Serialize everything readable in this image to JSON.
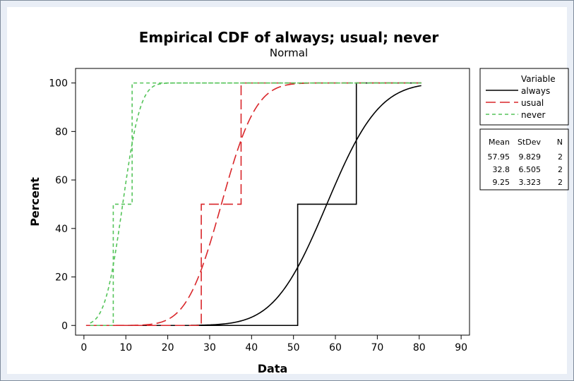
{
  "chart_data": {
    "type": "line",
    "title": "Empirical CDF of always; usual; never",
    "subtitle": "Normal",
    "xlabel": "Data",
    "ylabel": "Percent",
    "xlim": [
      -2,
      92
    ],
    "ylim": [
      -4,
      106
    ],
    "xticks": [
      0,
      10,
      20,
      30,
      40,
      50,
      60,
      70,
      80,
      90
    ],
    "yticks": [
      0,
      20,
      40,
      60,
      80,
      100
    ],
    "grid": false,
    "legend": {
      "title": "Variable",
      "placement": "right",
      "entries": [
        {
          "name": "always",
          "color": "#000000",
          "dash": "solid"
        },
        {
          "name": "usual",
          "color": "#d9262a",
          "dash": "long-dash"
        },
        {
          "name": "never",
          "color": "#55c45a",
          "dash": "short-dash"
        }
      ]
    },
    "series": [
      {
        "name": "always",
        "color": "#000000",
        "empirical_points": [
          51,
          65
        ],
        "mean": 57.95,
        "stdev": 9.829,
        "n": 2,
        "fit": "normal",
        "fit_range": [
          25.5,
          80.5
        ]
      },
      {
        "name": "usual",
        "color": "#d9262a",
        "empirical_points": [
          28,
          37.5
        ],
        "mean": 32.8,
        "stdev": 6.505,
        "n": 2,
        "fit": "normal",
        "fit_range": [
          0.5,
          80.5
        ]
      },
      {
        "name": "never",
        "color": "#55c45a",
        "empirical_points": [
          7,
          11.5
        ],
        "mean": 9.25,
        "stdev": 3.323,
        "n": 2,
        "fit": "normal",
        "fit_range": [
          1.5,
          80.5
        ]
      }
    ],
    "empirical_range": [
      1.5,
      80.5
    ],
    "stats_table": {
      "headers": [
        "Mean",
        "StDev",
        "N"
      ],
      "rows": [
        [
          "57.95",
          "9.829",
          "2"
        ],
        [
          "32.8",
          "6.505",
          "2"
        ],
        [
          "9.25",
          "3.323",
          "2"
        ]
      ]
    }
  }
}
